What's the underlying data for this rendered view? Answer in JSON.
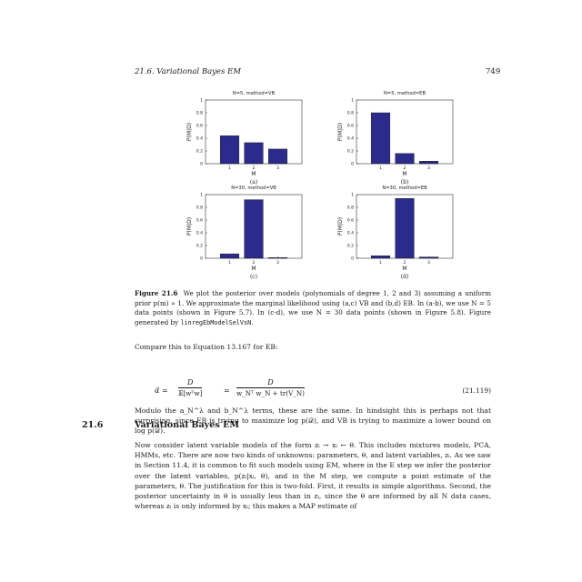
{
  "header": {
    "running_title": "21.6.  Variational Bayes EM",
    "page_number": "749"
  },
  "chart_data": [
    {
      "type": "bar",
      "panel": "(a)",
      "title": "N=5, method=VB",
      "xlabel": "M",
      "ylabel": "P(M|D)",
      "categories": [
        "1",
        "2",
        "3"
      ],
      "values": [
        0.44,
        0.33,
        0.23
      ],
      "ylim": [
        0,
        1
      ],
      "yticks": [
        "0",
        "0.2",
        "0.4",
        "0.6",
        "0.8",
        "1"
      ],
      "color": "#2b2b8c"
    },
    {
      "type": "bar",
      "panel": "(b)",
      "title": "N=5, method=EB",
      "xlabel": "M",
      "ylabel": "P(M|D)",
      "categories": [
        "1",
        "2",
        "3"
      ],
      "values": [
        0.8,
        0.16,
        0.04
      ],
      "ylim": [
        0,
        1
      ],
      "yticks": [
        "0",
        "0.2",
        "0.4",
        "0.6",
        "0.8",
        "1"
      ],
      "color": "#2b2b8c"
    },
    {
      "type": "bar",
      "panel": "(c)",
      "title": "N=30, method=VB",
      "xlabel": "M",
      "ylabel": "P(M|D)",
      "categories": [
        "1",
        "2",
        "3"
      ],
      "values": [
        0.07,
        0.92,
        0.01
      ],
      "ylim": [
        0,
        1
      ],
      "yticks": [
        "0",
        "0.2",
        "0.4",
        "0.6",
        "0.8",
        "1"
      ],
      "color": "#2b2b8c"
    },
    {
      "type": "bar",
      "panel": "(d)",
      "title": "N=30, method=EB",
      "xlabel": "M",
      "ylabel": "P(M|D)",
      "categories": [
        "1",
        "2",
        "3"
      ],
      "values": [
        0.04,
        0.94,
        0.02
      ],
      "ylim": [
        0,
        1
      ],
      "yticks": [
        "0",
        "0.2",
        "0.4",
        "0.6",
        "0.8",
        "1"
      ],
      "color": "#2b2b8c"
    }
  ],
  "caption": {
    "label": "Figure 21.6",
    "text_1": "We plot the posterior over models (polynomials of degree 1, 2 and 3) assuming a uniform prior p(m) ∝ 1. We approximate the marginal likelihood using (a,c) VB and (b,d) EB. In (a-b), we use N = 5 data points (shown in Figure 5.7). In (c-d), we use N = 30 data points (shown in Figure 5.8). Figure generated by",
    "code": "linregEbModelSelVsN",
    "text_2": "."
  },
  "para_compare": "Compare this to Equation 13.167 for EB:",
  "equation": {
    "lhs": "α̂ =",
    "frac1_num": "D",
    "frac1_den": "𝔼[wᵀw]",
    "eq": "=",
    "frac2_num": "D",
    "frac2_den": "w_Nᵀ w_N + tr(V_N)",
    "number": "(21.119)"
  },
  "para_modulo": "Modulo the a_N^λ and b_N^λ terms, these are the same. In hindsight this is perhaps not that surprising, since EB is trying to maximize log p(𝒟), and VB is trying to maximize a lower bound on log p(𝒟).",
  "section": {
    "number": "21.6",
    "title": "Variational Bayes EM"
  },
  "para_section": "Now consider latent variable models of the form zᵢ → xᵢ ← θ. This includes mixtures models, PCA, HMMs, etc. There are now two kinds of unknowns: parameters, θ, and latent variables, zᵢ. As we saw in Section 11.4, it is common to fit such models using EM, where in the E step we infer the posterior over the latent variables, p(zᵢ|xᵢ, θ), and in the M step, we compute a point estimate of the parameters, θ. The justification for this is two-fold. First, it results in simple algorithms. Second, the posterior uncertainty in θ is usually less than in zᵢ, since the θ are informed by all N data cases, whereas zᵢ is only informed by xᵢ; this makes a MAP estimate of"
}
